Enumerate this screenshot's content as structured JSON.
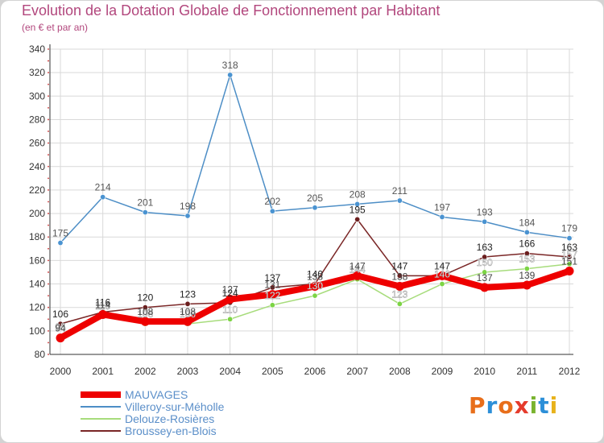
{
  "title": "Evolution de la Dotation Globale de Fonctionnement par Habitant",
  "subtitle": "(en € et par an)",
  "logo": {
    "text": "Proxiti",
    "letters": [
      {
        "c": "P",
        "color": "#e86e1a"
      },
      {
        "c": "r",
        "color": "#2c8fd8"
      },
      {
        "c": "o",
        "color": "#e86e1a"
      },
      {
        "c": "x",
        "color": "#e53b2c"
      },
      {
        "c": "i",
        "color": "#79b32f"
      },
      {
        "c": "t",
        "color": "#2c8fd8"
      },
      {
        "c": "i",
        "color": "#e8b21a"
      }
    ]
  },
  "colors": {
    "background_outer": "#d3d3d3",
    "plot_background": "#ffffff",
    "grid": "#d9d9d9",
    "axis": "#333333"
  },
  "chart_data": {
    "type": "line",
    "title": "Evolution de la Dotation Globale de Fonctionnement par Habitant",
    "subtitle": "(en € et par an)",
    "xlabel": "",
    "ylabel": "",
    "ylim": [
      80,
      340
    ],
    "yticks": [
      80,
      100,
      120,
      140,
      160,
      180,
      200,
      220,
      240,
      260,
      280,
      300,
      320,
      340
    ],
    "grid": true,
    "legend_position": "bottom-left",
    "x": [
      "2000",
      "2001",
      "2002",
      "2003",
      "2004",
      "2005",
      "2006",
      "2007",
      "2008",
      "2009",
      "2010",
      "2011",
      "2012"
    ],
    "series": [
      {
        "name": "Villeroy-sur-Méholle",
        "color": "#4d8ec6",
        "markerFill": "#4a93d1",
        "labelColor": "#555555",
        "values": [
          175,
          214,
          201,
          198,
          318,
          202,
          205,
          208,
          211,
          197,
          193,
          184,
          179
        ],
        "labels": [
          "175",
          "214",
          "201",
          "198",
          "318",
          "202",
          "205",
          "208",
          "211",
          "197",
          "193",
          "184",
          "179"
        ],
        "bold": false
      },
      {
        "name": "Delouze-Rosières",
        "color": "#a7dc7c",
        "markerFill": "#7cd444",
        "labelColor": "#ffffff",
        "values": [
          95,
          113,
          106,
          106,
          110,
          122,
          130,
          144,
          123,
          140,
          150,
          153,
          157
        ],
        "labels": [
          "95",
          "113",
          "106",
          "106",
          "110",
          "122",
          "130",
          "144",
          "123",
          "140",
          "150",
          "153",
          "157"
        ],
        "bold": false
      },
      {
        "name": "Broussey-en-Blois",
        "color": "#7a2626",
        "markerFill": "#6b1e1e",
        "labelColor": "#222222",
        "values": [
          106,
          116,
          120,
          123,
          124,
          137,
          140,
          195,
          147,
          147,
          163,
          166,
          163
        ],
        "labels": [
          "106",
          "116",
          "120",
          "123",
          "124",
          "137",
          "140",
          "195",
          "147",
          "147",
          "163",
          "166",
          "163"
        ],
        "bold": false
      },
      {
        "name": "MAUVAGES",
        "color": "#ee0000",
        "markerFill": "#ee0000",
        "labelColor": "#444444",
        "values": [
          94,
          114,
          108,
          108,
          127,
          131,
          138,
          147,
          138,
          147,
          137,
          139,
          151
        ],
        "labels": [
          "94",
          "114",
          "108",
          "108",
          "127",
          "131",
          "138",
          "147",
          "138",
          "147",
          "137",
          "139",
          "151"
        ],
        "bold": true
      }
    ]
  }
}
